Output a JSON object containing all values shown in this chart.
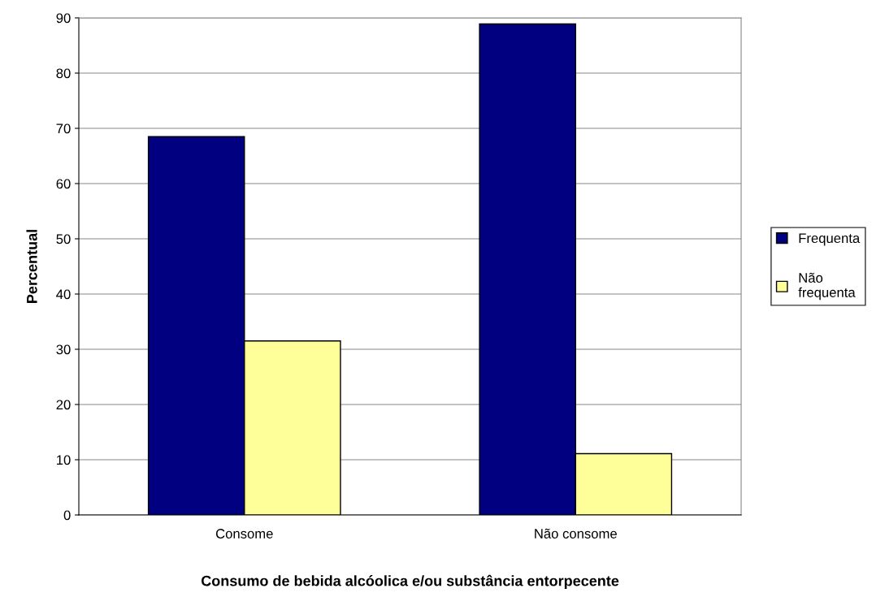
{
  "chart_data": {
    "type": "bar",
    "xlabel": "Consumo de bebida alcóolica e/ou substância entorpecente",
    "ylabel": "Percentual",
    "categories": [
      "Consome",
      "Não consome"
    ],
    "series": [
      {
        "name": "Frequenta",
        "color": "#000080",
        "values": [
          68.5,
          88.9
        ]
      },
      {
        "name": "Não frequenta",
        "color": "#ffff99",
        "values": [
          31.5,
          11.1
        ]
      }
    ],
    "ylim": [
      0,
      90
    ],
    "yticks": [
      0,
      10,
      20,
      30,
      40,
      50,
      60,
      70,
      80,
      90
    ],
    "grid": "y",
    "legend": "right"
  }
}
